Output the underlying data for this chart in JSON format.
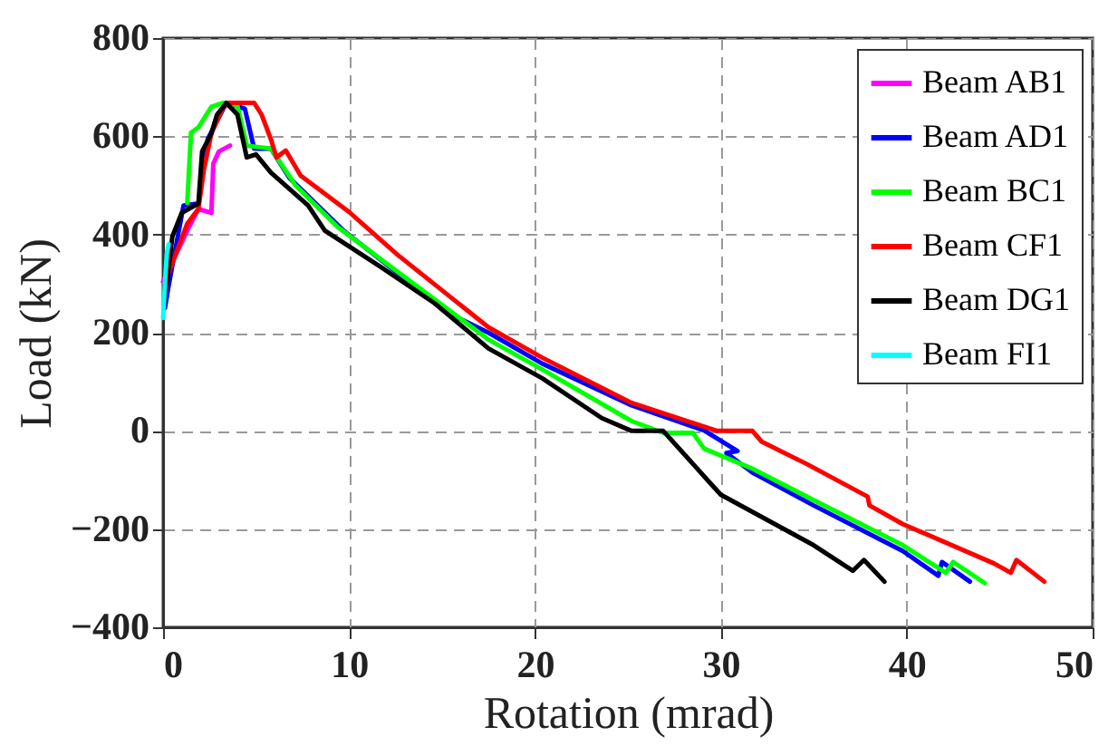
{
  "chart_data": {
    "type": "line",
    "xlabel": "Rotation (mrad)",
    "ylabel": "Load (kN)",
    "xlim": [
      0,
      50
    ],
    "xticks": [
      0,
      10,
      20,
      30,
      40,
      50
    ],
    "ylim": [
      -400,
      800
    ],
    "yticks": [
      -400,
      -200,
      0,
      200,
      400,
      600,
      800
    ],
    "grid": true,
    "legend": "top right",
    "marker": "none",
    "line_style": "solid",
    "series": [
      {
        "name": "Beam AB1",
        "color": "#ff00ff",
        "x": [
          0,
          1.3,
          1.9,
          2.6,
          2.7,
          3.0,
          3.6
        ],
        "values": [
          304,
          408,
          452,
          444,
          544,
          569,
          581
        ]
      },
      {
        "name": "Beam AD1",
        "color": "#0000ff",
        "x": [
          0.1,
          0.3,
          1.1,
          1.9,
          2.4,
          3.4,
          4.4,
          4.9,
          5.8,
          6.8,
          9.7,
          12.6,
          15.5,
          17.5,
          20.4,
          25.2,
          29.1,
          30.9,
          30.3,
          31.7,
          35.0,
          39.8,
          41.7,
          41.9,
          43.4
        ],
        "values": [
          250,
          296,
          459,
          463,
          594,
          668,
          656,
          575,
          575,
          515,
          408,
          322,
          237,
          200,
          137,
          52,
          1,
          -41,
          -45,
          -85,
          -152,
          -245,
          -295,
          -267,
          -307
        ]
      },
      {
        "name": "Beam BC1",
        "color": "#00ff00",
        "x": [
          1.3,
          1.5,
          1.9,
          2.6,
          3.2,
          4.0,
          4.5,
          5.8,
          7.1,
          9.4,
          17.5,
          20.4,
          25.2,
          26.9,
          28.5,
          29.1,
          31.7,
          35.0,
          39.8,
          42.1,
          42.5,
          44.2
        ],
        "values": [
          464,
          607,
          618,
          660,
          668,
          662,
          581,
          575,
          501,
          415,
          186,
          125,
          20,
          -4,
          -4,
          -36,
          -77,
          -141,
          -233,
          -289,
          -267,
          -310
        ]
      },
      {
        "name": "Beam CF1",
        "color": "#ff0000",
        "x": [
          0.3,
          1.3,
          1.9,
          2.2,
          2.6,
          3.2,
          3.5,
          4.9,
          5.3,
          5.8,
          6.1,
          6.6,
          7.4,
          10.0,
          12.6,
          17.5,
          20.4,
          25.2,
          29.8,
          31.7,
          32.2,
          34.6,
          37.9,
          38.0,
          39.8,
          44.7,
          45.6,
          45.9,
          47.4
        ],
        "values": [
          322,
          422,
          452,
          533,
          606,
          656,
          668,
          668,
          644,
          594,
          557,
          571,
          520,
          446,
          359,
          211,
          149,
          57,
          0,
          0,
          -22,
          -67,
          -134,
          -152,
          -190,
          -270,
          -289,
          -263,
          -307
        ]
      },
      {
        "name": "Beam DG1",
        "color": "#000000",
        "x": [
          0.07,
          0.5,
          1.0,
          1.9,
          2.1,
          2.6,
          2.9,
          3.4,
          4.0,
          4.5,
          5.0,
          5.8,
          7.8,
          8.7,
          11.7,
          14.6,
          17.5,
          20.4,
          23.6,
          25.2,
          26.9,
          29.4,
          30.0,
          35.0,
          37.1,
          37.7,
          38.8
        ],
        "values": [
          260,
          396,
          444,
          463,
          569,
          606,
          644,
          668,
          644,
          557,
          563,
          526,
          459,
          408,
          334,
          260,
          168,
          107,
          26,
          0,
          0,
          -105,
          -130,
          -233,
          -285,
          -263,
          -307
        ]
      },
      {
        "name": "Beam FI1",
        "color": "#00ffff",
        "x": [
          0,
          0.1,
          0.2,
          0.3
        ],
        "values": [
          230,
          300,
          360,
          380
        ]
      }
    ]
  }
}
